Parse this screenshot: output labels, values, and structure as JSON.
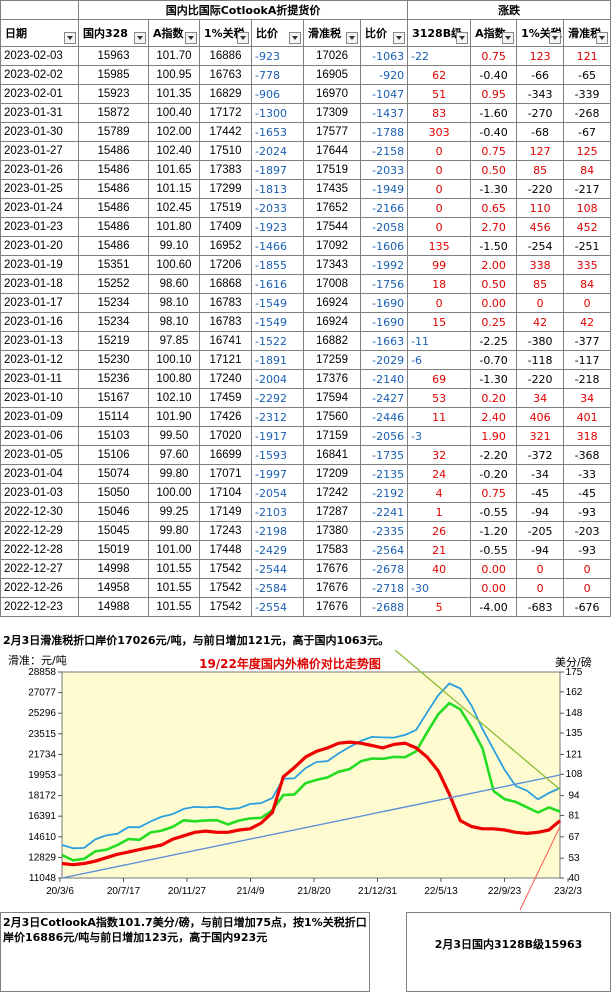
{
  "header": {
    "group1": "国内比国际CotlookA折提货价",
    "group2": "涨跌",
    "cols": [
      "日期",
      "国内328",
      "A指数",
      "1%关税",
      "比价",
      "滑准税",
      "比价",
      "3128B级",
      "A指数",
      "1%关税",
      "滑准税"
    ]
  },
  "rows": [
    [
      "2023-02-03",
      "15963",
      "101.70",
      "16886",
      "-923",
      "17026",
      "-1063",
      "-22",
      "0.75",
      "123",
      "121"
    ],
    [
      "2023-02-02",
      "15985",
      "100.95",
      "16763",
      "-778",
      "16905",
      "-920",
      "62",
      "-0.40",
      "-66",
      "-65"
    ],
    [
      "2023-02-01",
      "15923",
      "101.35",
      "16829",
      "-906",
      "16970",
      "-1047",
      "51",
      "0.95",
      "-343",
      "-339"
    ],
    [
      "2023-01-31",
      "15872",
      "100.40",
      "17172",
      "-1300",
      "17309",
      "-1437",
      "83",
      "-1.60",
      "-270",
      "-268"
    ],
    [
      "2023-01-30",
      "15789",
      "102.00",
      "17442",
      "-1653",
      "17577",
      "-1788",
      "303",
      "-0.40",
      "-68",
      "-67"
    ],
    [
      "2023-01-27",
      "15486",
      "102.40",
      "17510",
      "-2024",
      "17644",
      "-2158",
      "0",
      "0.75",
      "127",
      "125"
    ],
    [
      "2023-01-26",
      "15486",
      "101.65",
      "17383",
      "-1897",
      "17519",
      "-2033",
      "0",
      "0.50",
      "85",
      "84"
    ],
    [
      "2023-01-25",
      "15486",
      "101.15",
      "17299",
      "-1813",
      "17435",
      "-1949",
      "0",
      "-1.30",
      "-220",
      "-217"
    ],
    [
      "2023-01-24",
      "15486",
      "102.45",
      "17519",
      "-2033",
      "17652",
      "-2166",
      "0",
      "0.65",
      "110",
      "108"
    ],
    [
      "2023-01-23",
      "15486",
      "101.80",
      "17409",
      "-1923",
      "17544",
      "-2058",
      "0",
      "2.70",
      "456",
      "452"
    ],
    [
      "2023-01-20",
      "15486",
      "99.10",
      "16952",
      "-1466",
      "17092",
      "-1606",
      "135",
      "-1.50",
      "-254",
      "-251"
    ],
    [
      "2023-01-19",
      "15351",
      "100.60",
      "17206",
      "-1855",
      "17343",
      "-1992",
      "99",
      "2.00",
      "338",
      "335"
    ],
    [
      "2023-01-18",
      "15252",
      "98.60",
      "16868",
      "-1616",
      "17008",
      "-1756",
      "18",
      "0.50",
      "85",
      "84"
    ],
    [
      "2023-01-17",
      "15234",
      "98.10",
      "16783",
      "-1549",
      "16924",
      "-1690",
      "0",
      "0.00",
      "0",
      "0"
    ],
    [
      "2023-01-16",
      "15234",
      "98.10",
      "16783",
      "-1549",
      "16924",
      "-1690",
      "15",
      "0.25",
      "42",
      "42"
    ],
    [
      "2023-01-13",
      "15219",
      "97.85",
      "16741",
      "-1522",
      "16882",
      "-1663",
      "-11",
      "-2.25",
      "-380",
      "-377"
    ],
    [
      "2023-01-12",
      "15230",
      "100.10",
      "17121",
      "-1891",
      "17259",
      "-2029",
      "-6",
      "-0.70",
      "-118",
      "-117"
    ],
    [
      "2023-01-11",
      "15236",
      "100.80",
      "17240",
      "-2004",
      "17376",
      "-2140",
      "69",
      "-1.30",
      "-220",
      "-218"
    ],
    [
      "2023-01-10",
      "15167",
      "102.10",
      "17459",
      "-2292",
      "17594",
      "-2427",
      "53",
      "0.20",
      "34",
      "34"
    ],
    [
      "2023-01-09",
      "15114",
      "101.90",
      "17426",
      "-2312",
      "17560",
      "-2446",
      "11",
      "2.40",
      "406",
      "401"
    ],
    [
      "2023-01-06",
      "15103",
      "99.50",
      "17020",
      "-1917",
      "17159",
      "-2056",
      "-3",
      "1.90",
      "321",
      "318"
    ],
    [
      "2023-01-05",
      "15106",
      "97.60",
      "16699",
      "-1593",
      "16841",
      "-1735",
      "32",
      "-2.20",
      "-372",
      "-368"
    ],
    [
      "2023-01-04",
      "15074",
      "99.80",
      "17071",
      "-1997",
      "17209",
      "-2135",
      "24",
      "-0.20",
      "-34",
      "-33"
    ],
    [
      "2023-01-03",
      "15050",
      "100.00",
      "17104",
      "-2054",
      "17242",
      "-2192",
      "4",
      "0.75",
      "-45",
      "-45"
    ],
    [
      "2022-12-30",
      "15046",
      "99.25",
      "17149",
      "-2103",
      "17287",
      "-2241",
      "1",
      "-0.55",
      "-94",
      "-93"
    ],
    [
      "2022-12-29",
      "15045",
      "99.80",
      "17243",
      "-2198",
      "17380",
      "-2335",
      "26",
      "-1.20",
      "-205",
      "-203"
    ],
    [
      "2022-12-28",
      "15019",
      "101.00",
      "17448",
      "-2429",
      "17583",
      "-2564",
      "21",
      "-0.55",
      "-94",
      "-93"
    ],
    [
      "2022-12-27",
      "14998",
      "101.55",
      "17542",
      "-2544",
      "17676",
      "-2678",
      "40",
      "0.00",
      "0",
      "0"
    ],
    [
      "2022-12-26",
      "14958",
      "101.55",
      "17542",
      "-2584",
      "17676",
      "-2718",
      "-30",
      "0.00",
      "0",
      "0"
    ],
    [
      "2022-12-23",
      "14988",
      "101.55",
      "17542",
      "-2554",
      "17676",
      "-2688",
      "5",
      "-4.00",
      "-683",
      "-676"
    ]
  ],
  "notes": {
    "top": "2月3日滑准税折口岸价17026元/吨，与前日增加121元，高于国内1063元。",
    "bottom_left": "2月3日CotlookA指数101.7美分/磅，与前日增加75点，按1%关税折口岸价16886元/吨与前日增加123元，高于国内923元",
    "bottom_right": "2月3日国内3128B级15963"
  },
  "colors": {
    "blue_line": "#2a9fe0",
    "green_line": "#22dd22",
    "red_line": "#ee0000",
    "plot_bg": "#fffbd0"
  },
  "chart_data": {
    "type": "line",
    "title": "19/22年度国内外棉价对比走势图",
    "ylabel_left": "滑准：元/吨",
    "ylabel_right": "美分/磅",
    "x_ticks": [
      "20/3/6",
      "20/7/17",
      "20/11/27",
      "21/4/9",
      "21/8/20",
      "21/12/31",
      "22/5/13",
      "22/9/23",
      "23/2/3"
    ],
    "y_left_ticks": [
      11048,
      12829,
      14610,
      16391,
      18172,
      19953,
      21734,
      23515,
      25296,
      27077,
      28858
    ],
    "y_right_ticks": [
      40,
      53,
      67,
      81,
      94,
      108,
      121,
      135,
      148,
      162,
      175
    ],
    "ylim_left": [
      11048,
      28858
    ],
    "ylim_right": [
      40,
      175
    ],
    "series": [
      {
        "role": "blue",
        "x": [
          0,
          3,
          6,
          9,
          12,
          15,
          18,
          21,
          24,
          27,
          30,
          33,
          36,
          39,
          42,
          45,
          48,
          51,
          54,
          57,
          60,
          63,
          66,
          69,
          72,
          75,
          78,
          81,
          84,
          87,
          90,
          93,
          96,
          99,
          102,
          105,
          108,
          111,
          114,
          117,
          120,
          123,
          126,
          129,
          132,
          135
        ],
        "y": [
          13900,
          13500,
          13800,
          14300,
          14700,
          15000,
          15300,
          15500,
          16000,
          16200,
          16700,
          17000,
          17100,
          17300,
          17100,
          17000,
          17200,
          17300,
          17600,
          18000,
          19500,
          19800,
          20500,
          21000,
          21300,
          21700,
          22400,
          23000,
          23100,
          23300,
          23200,
          23300,
          24000,
          25300,
          26800,
          28000,
          27300,
          26000,
          24000,
          22000,
          20500,
          19000,
          18500,
          18000,
          18300,
          18800
        ]
      },
      {
        "role": "green",
        "x": [
          0,
          3,
          6,
          9,
          12,
          15,
          18,
          21,
          24,
          27,
          30,
          33,
          36,
          39,
          42,
          45,
          48,
          51,
          54,
          57,
          60,
          63,
          66,
          69,
          72,
          75,
          78,
          81,
          84,
          87,
          90,
          93,
          96,
          99,
          102,
          105,
          108,
          111,
          114,
          117,
          120,
          123,
          126,
          129,
          132,
          135
        ],
        "y": [
          12900,
          12600,
          12800,
          13200,
          13600,
          13900,
          14300,
          14500,
          14900,
          15100,
          15600,
          15900,
          16000,
          16100,
          15900,
          15800,
          16000,
          16100,
          16400,
          16800,
          18200,
          18400,
          19100,
          19600,
          19800,
          20100,
          20600,
          21100,
          21300,
          21500,
          21400,
          21500,
          22100,
          23500,
          25300,
          26200,
          25500,
          24200,
          22200,
          18500,
          18000,
          17500,
          17200,
          16800,
          17000,
          16900
        ]
      },
      {
        "role": "red",
        "x": [
          0,
          3,
          6,
          9,
          12,
          15,
          18,
          21,
          24,
          27,
          30,
          33,
          36,
          39,
          42,
          45,
          48,
          51,
          54,
          57,
          60,
          63,
          66,
          69,
          72,
          75,
          78,
          81,
          84,
          87,
          90,
          93,
          96,
          99,
          102,
          105,
          108,
          111,
          114,
          117,
          120,
          123,
          126,
          129,
          132,
          135
        ],
        "y": [
          12300,
          12200,
          12300,
          12500,
          12800,
          13100,
          13300,
          13500,
          13700,
          13900,
          14400,
          14700,
          15000,
          15100,
          15000,
          15000,
          15200,
          15300,
          15800,
          16700,
          19800,
          20600,
          21500,
          22000,
          22300,
          22700,
          22800,
          22700,
          22500,
          22300,
          22600,
          22700,
          22300,
          21500,
          20300,
          18300,
          16000,
          15500,
          15300,
          15300,
          15200,
          15000,
          14900,
          15000,
          15200,
          16000
        ]
      }
    ]
  }
}
